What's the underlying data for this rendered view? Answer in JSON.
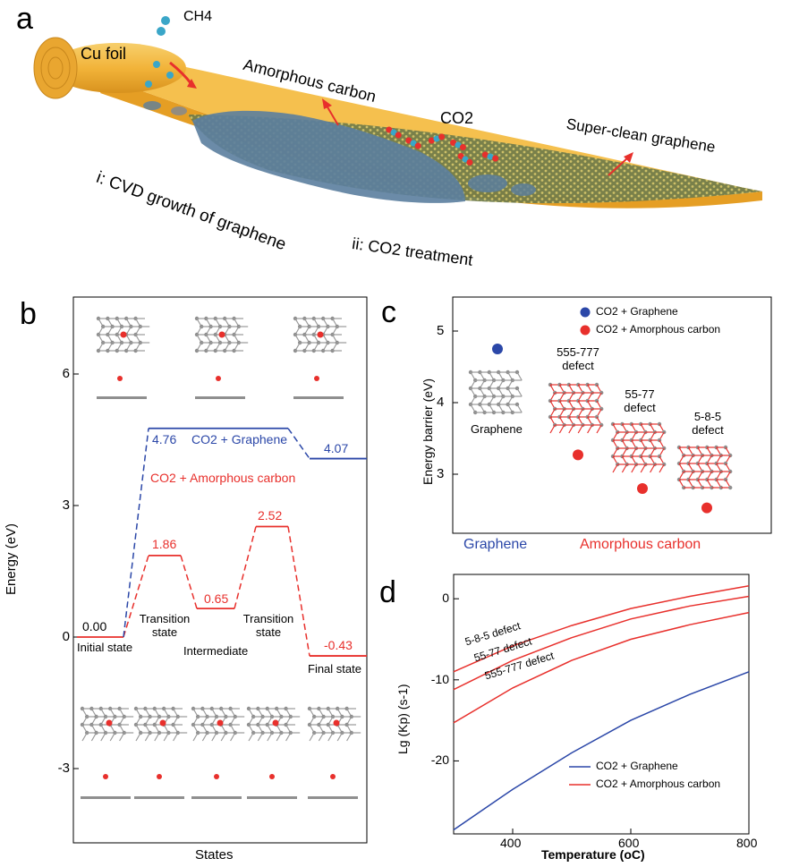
{
  "panels": {
    "a": {
      "letter": "a",
      "labels": {
        "ch4": "CH4",
        "cu_foil": "Cu foil",
        "amorphous_carbon": "Amorphous carbon",
        "co2": "CO2",
        "super_clean": "Super-clean graphene",
        "step1": "i: CVD growth of graphene",
        "step2": "ii: CO2 treatment"
      }
    },
    "b": {
      "letter": "b",
      "ylabel": "Energy (eV)",
      "xlabel": "States",
      "yticks": [
        "6",
        "3",
        "0",
        "-3"
      ],
      "series_labels": {
        "graphene": "CO2 + Graphene",
        "amorphous": "CO2 + Amorphous carbon"
      },
      "state_labels": [
        "Initial state",
        "Transition state",
        "Intermediate",
        "Transition state",
        "Final state"
      ],
      "value_labels": [
        "0.00",
        "4.76",
        "4.07",
        "1.86",
        "0.65",
        "2.52",
        "-0.43"
      ]
    },
    "c": {
      "letter": "c",
      "ylabel": "Energy barrier (eV)",
      "yticks": [
        "5",
        "4",
        "3"
      ],
      "legend": [
        "CO2 + Graphene",
        "CO2 + Amorphous carbon"
      ],
      "structure_labels": [
        "Graphene",
        "555-777 defect",
        "55-77 defect",
        "5-8-5 defect"
      ],
      "group_labels": {
        "graphene": "Graphene",
        "amorphous": "Amorphous carbon"
      }
    },
    "d": {
      "letter": "d",
      "ylabel": "Lg (Kp) (s-1)",
      "xlabel": "Temperature (oC)",
      "xticks": [
        "400",
        "600",
        "800"
      ],
      "yticks": [
        "0",
        "-10",
        "-20"
      ],
      "legend": [
        "CO2 + Graphene",
        "CO2 + Amorphous carbon"
      ],
      "curve_labels": [
        "5-8-5 defect",
        "55-77 defect",
        "555-777 defect"
      ]
    }
  },
  "colors": {
    "graphene": "#2b47a8",
    "amorphous": "#e8302c",
    "foil": "#f2b43a"
  },
  "chart_data": [
    {
      "type": "line",
      "title": "",
      "xlabel": "States",
      "ylabel": "Energy (eV)",
      "ylim": [
        -4.5,
        7.5
      ],
      "categories": [
        "Initial state",
        "Transition state",
        "Intermediate",
        "Transition state",
        "Final state"
      ],
      "series": [
        {
          "name": "CO2 + Graphene",
          "points": [
            [
              "Initial state",
              0.0
            ],
            [
              "Transition state",
              4.76
            ],
            [
              "Final state",
              4.07
            ]
          ]
        },
        {
          "name": "CO2 + Amorphous carbon",
          "values": [
            0.0,
            1.86,
            0.65,
            2.52,
            -0.43
          ]
        }
      ]
    },
    {
      "type": "scatter",
      "title": "",
      "ylabel": "Energy barrier (eV)",
      "ylim": [
        2.4,
        5.4
      ],
      "categories": [
        "Graphene",
        "555-777 defect",
        "55-77 defect",
        "5-8-5 defect"
      ],
      "series": [
        {
          "name": "CO2 + Graphene",
          "values": [
            4.75,
            null,
            null,
            null
          ]
        },
        {
          "name": "CO2 + Amorphous carbon",
          "values": [
            null,
            3.27,
            2.8,
            2.53
          ]
        }
      ],
      "legend": "top-right"
    },
    {
      "type": "line",
      "title": "",
      "xlabel": "Temperature (oC)",
      "ylabel": "Lg (Kp) (s-1)",
      "xlim": [
        300,
        800
      ],
      "ylim": [
        -29,
        3
      ],
      "series": [
        {
          "name": "CO2 + Graphene",
          "x": [
            300,
            400,
            500,
            600,
            700,
            800
          ],
          "y": [
            -28.5,
            -23.5,
            -19.0,
            -15.0,
            -11.8,
            -9.0
          ]
        },
        {
          "name": "5-8-5 defect",
          "x": [
            300,
            400,
            500,
            600,
            700,
            800
          ],
          "y": [
            -9.0,
            -5.8,
            -3.3,
            -1.2,
            0.3,
            1.6
          ]
        },
        {
          "name": "55-77 defect",
          "x": [
            300,
            400,
            500,
            600,
            700,
            800
          ],
          "y": [
            -11.2,
            -7.6,
            -4.8,
            -2.5,
            -0.9,
            0.3
          ]
        },
        {
          "name": "555-777 defect",
          "x": [
            300,
            400,
            500,
            600,
            700,
            800
          ],
          "y": [
            -15.3,
            -11.0,
            -7.6,
            -5.0,
            -3.2,
            -1.7
          ]
        }
      ],
      "legend": "bottom-right"
    }
  ]
}
